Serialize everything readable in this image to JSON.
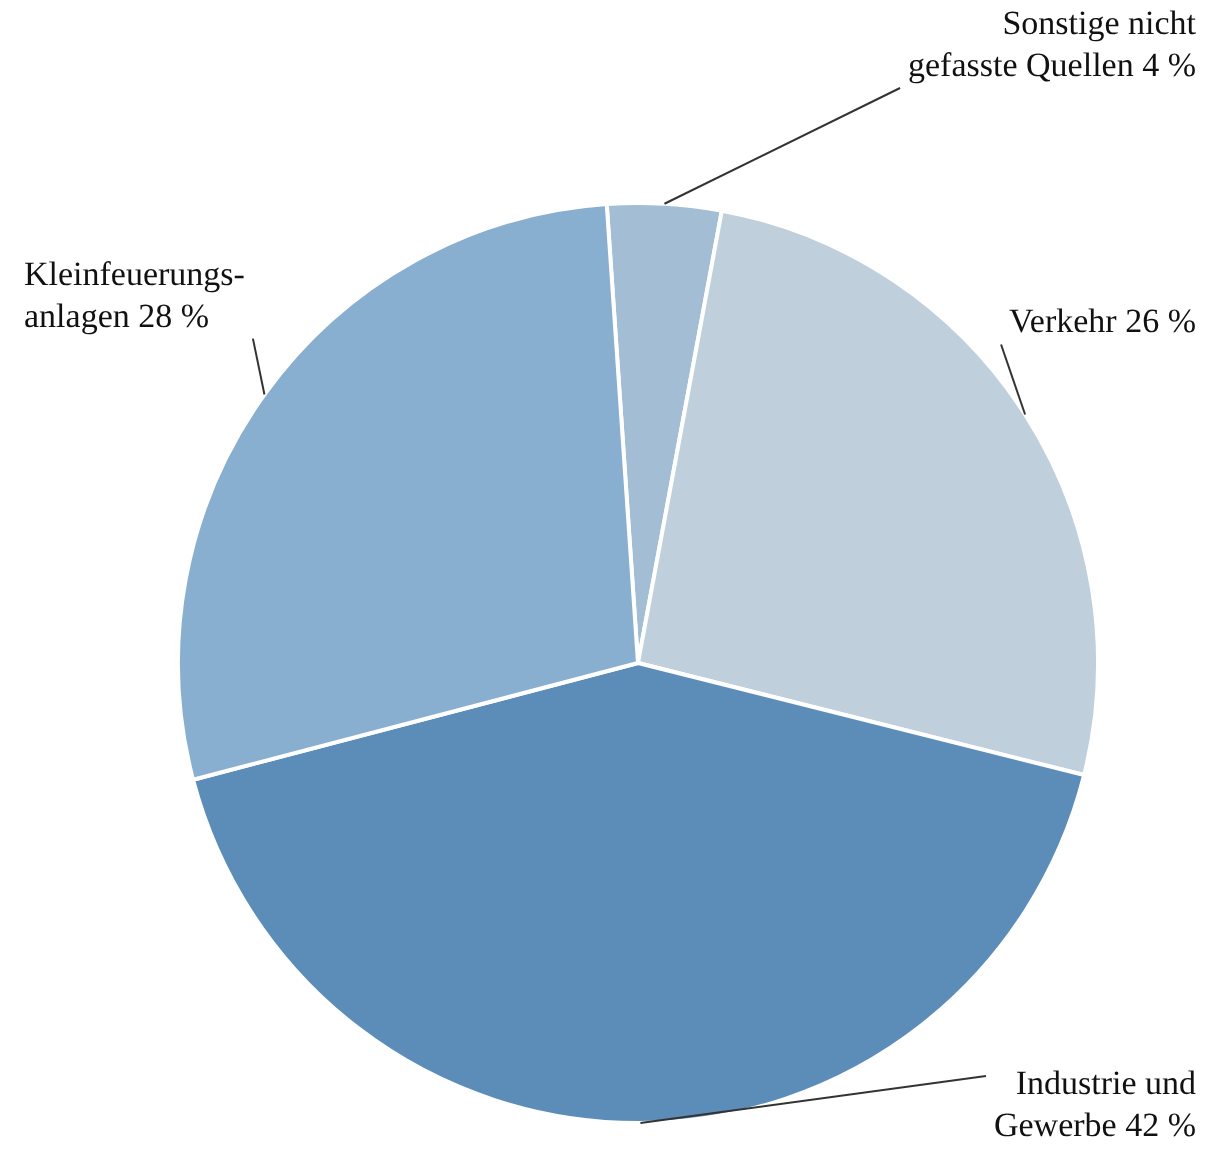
{
  "chart_data": {
    "type": "pie",
    "categories": [
      "Sonstige nicht gefasste Quellen",
      "Verkehr",
      "Industrie und Gewerbe",
      "Kleinfeuerungs-anlagen"
    ],
    "values": [
      4,
      26,
      42,
      28
    ],
    "value_labels": [
      "4 %",
      "26 %",
      "42 %",
      "28 %"
    ],
    "colors": [
      "#a3bdd4",
      "#bfcfdc",
      "#5b8db8",
      "#88aed0"
    ],
    "legend": false
  }
}
